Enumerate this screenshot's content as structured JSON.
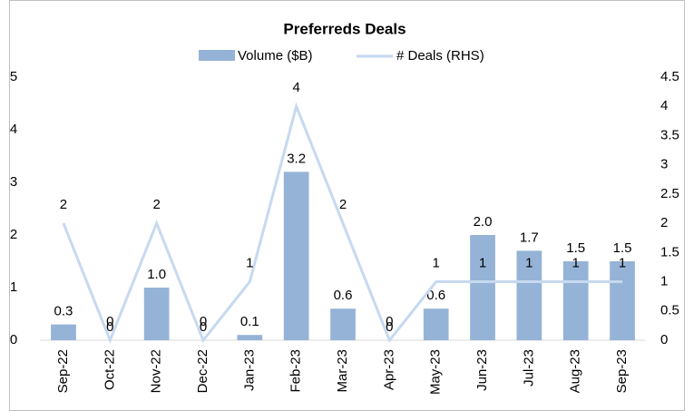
{
  "chart_data": {
    "type": "bar-line",
    "title": "Preferreds Deals",
    "categories": [
      "Sep-22",
      "Oct-22",
      "Nov-22",
      "Dec-22",
      "Jan-23",
      "Feb-23",
      "Mar-23",
      "Apr-23",
      "May-23",
      "Jun-23",
      "Jul-23",
      "Aug-23",
      "Sep-23"
    ],
    "series": [
      {
        "name": "Volume ($B)",
        "color": "#95b3d7",
        "axis": "y",
        "values": [
          0.3,
          0,
          1.0,
          0,
          0.1,
          3.2,
          0.6,
          0,
          0.6,
          2.0,
          1.7,
          1.5,
          1.5
        ],
        "value_labels": [
          "0.3",
          "0",
          "1.0",
          "0",
          "0.1",
          "3.2",
          "0.6",
          "0",
          "0.6",
          "2.0",
          "1.7",
          "1.5",
          "1.5"
        ]
      },
      {
        "name": "# Deals (RHS)",
        "color": "#c6d9f0",
        "axis": "y2",
        "values": [
          2,
          0,
          2,
          0,
          1,
          4,
          2,
          0,
          1,
          1,
          1,
          1,
          1
        ]
      }
    ],
    "ylim": [
      0,
      5
    ],
    "yticks": [
      0,
      1,
      2,
      3,
      4,
      5
    ],
    "y2lim": [
      0,
      4.5
    ],
    "y2ticks": [
      0,
      0.5,
      1,
      1.5,
      2,
      2.5,
      3,
      3.5,
      4,
      4.5
    ]
  }
}
